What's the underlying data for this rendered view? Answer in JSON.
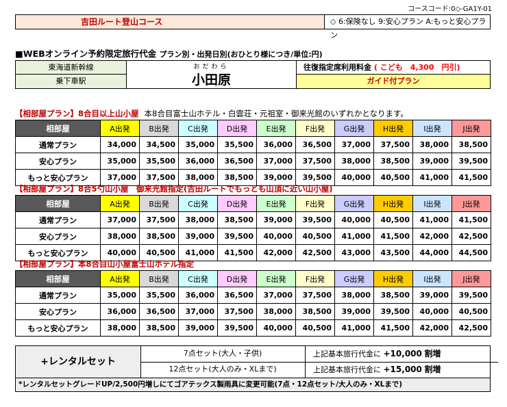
{
  "course_code": "コースコード:0◇-GA1Y-01",
  "course_name": "吉田ルート登山コース",
  "course_options": "◇ 6:保険なし 9:安心プラン A:もっと安心プラン",
  "heading": "■WEBオンライン予約限定旅行代金",
  "heading_sub": "プラン別・出発日別(おひとり様につき/単位:円)",
  "info": {
    "line": "東海道新幹線",
    "stop_label": "乗下車駅",
    "station_ruby": "おだわら",
    "station": "小田原",
    "fare_text": "往復指定席利用料金",
    "fare_kids": "( こども　4,300　円引)",
    "guide": "ガイド付プラン"
  },
  "sections": [
    {
      "title": "【相部屋プラン】8合目以上山小屋",
      "note": "本8合目富士山ホテル・白雲荘・元祖室・御来光館のいずれかとなります。",
      "rows": [
        {
          "plan": "通常プラン",
          "prices": [
            "34,000",
            "34,500",
            "35,000",
            "35,500",
            "36,000",
            "36,500",
            "37,000",
            "37,500",
            "38,000",
            "38,500"
          ]
        },
        {
          "plan": "安心プラン",
          "prices": [
            "35,000",
            "35,500",
            "36,000",
            "36,500",
            "37,000",
            "37,500",
            "38,000",
            "38,500",
            "39,000",
            "39,500"
          ]
        },
        {
          "plan": "もっと安心プラン",
          "prices": [
            "37,000",
            "37,500",
            "38,000",
            "38,500",
            "39,000",
            "39,500",
            "40,000",
            "40,500",
            "41,000",
            "41,500"
          ]
        }
      ]
    },
    {
      "title": "【相部屋プラン】8合5勺山小屋　御来光館指定(吉田ルートでもっとも山頂に近い山小屋)",
      "note": "",
      "rows": [
        {
          "plan": "通常プラン",
          "prices": [
            "37,000",
            "37,500",
            "38,000",
            "38,500",
            "39,000",
            "39,500",
            "40,000",
            "40,500",
            "41,000",
            "41,500"
          ]
        },
        {
          "plan": "安心プラン",
          "prices": [
            "38,000",
            "38,500",
            "39,000",
            "39,500",
            "40,000",
            "40,500",
            "41,000",
            "41,500",
            "42,000",
            "42,500"
          ]
        },
        {
          "plan": "もっと安心プラン",
          "prices": [
            "40,000",
            "40,500",
            "41,000",
            "41,500",
            "42,000",
            "42,500",
            "43,000",
            "43,500",
            "44,000",
            "44,500"
          ]
        }
      ]
    },
    {
      "title": "【相部屋プラン】本8合目山小屋富士山ホテル指定",
      "note": "",
      "rows": [
        {
          "plan": "通常プラン",
          "prices": [
            "35,000",
            "35,500",
            "36,000",
            "36,500",
            "37,000",
            "37,500",
            "38,000",
            "38,500",
            "39,000",
            "39,500"
          ]
        },
        {
          "plan": "安心プラン",
          "prices": [
            "36,000",
            "36,500",
            "37,000",
            "37,500",
            "38,000",
            "38,500",
            "39,000",
            "39,500",
            "40,000",
            "40,500"
          ]
        },
        {
          "plan": "もっと安心プラン",
          "prices": [
            "38,000",
            "38,500",
            "39,000",
            "39,500",
            "40,000",
            "40,500",
            "41,000",
            "41,500",
            "42,000",
            "42,500"
          ]
        }
      ]
    }
  ],
  "table_header": "相部屋",
  "departures": [
    {
      "label": "A出発",
      "color": "#ffff00"
    },
    {
      "label": "B出発",
      "color": "#d9d9d9"
    },
    {
      "label": "C出発",
      "color": "#ccffff"
    },
    {
      "label": "D出発",
      "color": "#ffccff"
    },
    {
      "label": "E出発",
      "color": "#ccffcc"
    },
    {
      "label": "F出発",
      "color": "#ffffcc"
    },
    {
      "label": "G出発",
      "color": "#ccccff"
    },
    {
      "label": "H出発",
      "color": "#ffcc00"
    },
    {
      "label": "I出発",
      "color": "#cce5ff"
    },
    {
      "label": "J出発",
      "color": "#ff9999"
    }
  ],
  "rental": {
    "label": "+レンタルセット",
    "set7": "7点セット(大人・子供)",
    "set12": "12点セット(大人のみ・XLまで)",
    "add_prefix": "上記基本旅行代金に",
    "add7": "+10,000",
    "add12": "+15,000",
    "add_suffix": "割増"
  },
  "footnote": "*レンタルセットグレードUP/2,500円増しにてゴアテックス製雨具に変更可能(7点・12点セット/大人のみ・XLまで)"
}
